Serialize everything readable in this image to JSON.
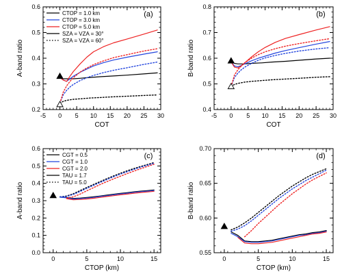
{
  "chart_data": [
    {
      "panel": "(a)",
      "type": "line",
      "xlabel": "COT",
      "ylabel": "A-band ratio",
      "xlim": [
        -5,
        30
      ],
      "ylim": [
        0.2,
        0.6
      ],
      "xticks": [
        -5,
        0,
        5,
        10,
        15,
        20,
        25,
        30
      ],
      "yticks": [
        0.2,
        0.3,
        0.4,
        0.5,
        0.6
      ],
      "legend": [
        "CTOP = 1.0 km",
        "CTOP = 3.0 km",
        "CTOP = 5.0 km",
        "SZA = VZA = 30°",
        "SZA = VZA = 60°"
      ],
      "legend_colors": [
        "#000000",
        "#2244dd",
        "#ee2222",
        "#000000",
        "#000000"
      ],
      "legend_styles": [
        "solid",
        "solid",
        "solid",
        "solid",
        "dotted"
      ],
      "legend_position": "top-left",
      "series": [
        {
          "color": "#000000",
          "style": "solid",
          "x": [
            0,
            1,
            2,
            4,
            6,
            9,
            12,
            16,
            20,
            25,
            29
          ],
          "y": [
            0.325,
            0.32,
            0.32,
            0.32,
            0.322,
            0.325,
            0.328,
            0.331,
            0.334,
            0.339,
            0.343
          ]
        },
        {
          "color": "#2244dd",
          "style": "solid",
          "x": [
            0,
            1,
            2,
            3,
            4,
            6,
            8,
            10,
            13,
            16,
            20,
            25,
            29
          ],
          "y": [
            0.325,
            0.315,
            0.31,
            0.32,
            0.33,
            0.345,
            0.358,
            0.37,
            0.383,
            0.393,
            0.404,
            0.416,
            0.425
          ]
        },
        {
          "color": "#ee2222",
          "style": "solid",
          "x": [
            0,
            1,
            2,
            3,
            4,
            6,
            8,
            10,
            13,
            16,
            20,
            25,
            29
          ],
          "y": [
            0.325,
            0.315,
            0.31,
            0.33,
            0.348,
            0.378,
            0.404,
            0.425,
            0.445,
            0.46,
            0.475,
            0.494,
            0.51
          ]
        },
        {
          "color": "#000000",
          "style": "dotted",
          "x": [
            0,
            1,
            2,
            4,
            6,
            9,
            12,
            16,
            20,
            25,
            29
          ],
          "y": [
            0.225,
            0.232,
            0.236,
            0.24,
            0.242,
            0.245,
            0.247,
            0.25,
            0.252,
            0.255,
            0.257
          ]
        },
        {
          "color": "#2244dd",
          "style": "dotted",
          "x": [
            0,
            1,
            2,
            3,
            4,
            6,
            8,
            10,
            13,
            16,
            20,
            25,
            29
          ],
          "y": [
            0.225,
            0.258,
            0.275,
            0.288,
            0.298,
            0.313,
            0.324,
            0.333,
            0.344,
            0.353,
            0.363,
            0.376,
            0.385
          ]
        },
        {
          "color": "#ee2222",
          "style": "dotted",
          "x": [
            0,
            1,
            2,
            3,
            4,
            6,
            8,
            10,
            13,
            16,
            20,
            25,
            29
          ],
          "y": [
            0.225,
            0.268,
            0.292,
            0.31,
            0.324,
            0.346,
            0.362,
            0.375,
            0.39,
            0.402,
            0.414,
            0.428,
            0.437
          ]
        }
      ],
      "markers": [
        {
          "shape": "filled-triangle",
          "x": 0,
          "y": 0.33
        },
        {
          "shape": "open-triangle",
          "x": 0,
          "y": 0.22
        }
      ]
    },
    {
      "panel": "(b)",
      "type": "line",
      "xlabel": "COT",
      "ylabel": "B-band ratio",
      "xlim": [
        -5,
        30
      ],
      "ylim": [
        0.4,
        0.8
      ],
      "xticks": [
        -5,
        0,
        5,
        10,
        15,
        20,
        25,
        30
      ],
      "yticks": [
        0.4,
        0.5,
        0.6,
        0.7,
        0.8
      ],
      "series": [
        {
          "color": "#000000",
          "style": "solid",
          "x": [
            0,
            1,
            2,
            4,
            6,
            9,
            12,
            16,
            20,
            25,
            29
          ],
          "y": [
            0.585,
            0.58,
            0.578,
            0.578,
            0.58,
            0.582,
            0.585,
            0.588,
            0.592,
            0.597,
            0.6
          ]
        },
        {
          "color": "#2244dd",
          "style": "solid",
          "x": [
            0,
            1,
            2,
            3,
            4,
            6,
            8,
            10,
            13,
            16,
            20,
            25,
            29
          ],
          "y": [
            0.585,
            0.57,
            0.567,
            0.572,
            0.578,
            0.59,
            0.6,
            0.608,
            0.62,
            0.63,
            0.641,
            0.655,
            0.665
          ]
        },
        {
          "color": "#ee2222",
          "style": "solid",
          "x": [
            0,
            1,
            2,
            3,
            4,
            6,
            8,
            10,
            13,
            16,
            20,
            25,
            29
          ],
          "y": [
            0.585,
            0.565,
            0.562,
            0.57,
            0.582,
            0.605,
            0.625,
            0.642,
            0.662,
            0.677,
            0.692,
            0.71,
            0.723
          ]
        },
        {
          "color": "#000000",
          "style": "dotted",
          "x": [
            0,
            1,
            2,
            4,
            6,
            9,
            12,
            16,
            20,
            25,
            29
          ],
          "y": [
            0.49,
            0.498,
            0.502,
            0.507,
            0.51,
            0.513,
            0.516,
            0.519,
            0.522,
            0.526,
            0.528
          ]
        },
        {
          "color": "#2244dd",
          "style": "dotted",
          "x": [
            0,
            1,
            2,
            3,
            4,
            6,
            8,
            10,
            13,
            16,
            20,
            25,
            29
          ],
          "y": [
            0.49,
            0.525,
            0.542,
            0.555,
            0.565,
            0.58,
            0.592,
            0.601,
            0.611,
            0.619,
            0.628,
            0.636,
            0.641
          ]
        },
        {
          "color": "#ee2222",
          "style": "dotted",
          "x": [
            0,
            1,
            2,
            3,
            4,
            6,
            8,
            10,
            13,
            16,
            20,
            25,
            29
          ],
          "y": [
            0.49,
            0.535,
            0.555,
            0.57,
            0.582,
            0.6,
            0.614,
            0.625,
            0.637,
            0.647,
            0.657,
            0.668,
            0.676
          ]
        }
      ],
      "markers": [
        {
          "shape": "filled-triangle",
          "x": 0,
          "y": 0.59
        },
        {
          "shape": "open-triangle",
          "x": 0,
          "y": 0.49
        }
      ]
    },
    {
      "panel": "(c)",
      "type": "line",
      "xlabel": "CTOP (km)",
      "ylabel": "A-band ratio",
      "xlim": [
        -1.5,
        16
      ],
      "ylim": [
        0.0,
        0.6
      ],
      "xticks": [
        0,
        5,
        10,
        15
      ],
      "yticks": [
        0.0,
        0.1,
        0.2,
        0.3,
        0.4,
        0.5,
        0.6
      ],
      "legend": [
        "CGT = 0.5",
        "CGT = 1.0",
        "CGT = 2.0",
        "TAU = 1.7",
        "TAU = 5.0"
      ],
      "legend_colors": [
        "#000000",
        "#2244dd",
        "#ee2222",
        "#000000",
        "#000000"
      ],
      "legend_styles": [
        "solid",
        "solid",
        "solid",
        "solid",
        "dotted"
      ],
      "legend_position": "top-left",
      "series": [
        {
          "color": "#000000",
          "style": "solid",
          "x": [
            1,
            2,
            3,
            4,
            5,
            6,
            7,
            8,
            9,
            10,
            11,
            12,
            13,
            14,
            15
          ],
          "y": [
            0.32,
            0.318,
            0.313,
            0.315,
            0.318,
            0.322,
            0.327,
            0.332,
            0.337,
            0.342,
            0.346,
            0.351,
            0.355,
            0.358,
            0.362
          ]
        },
        {
          "color": "#2244dd",
          "style": "solid",
          "x": [
            1,
            2,
            3,
            4,
            5,
            6,
            7,
            8,
            9,
            10,
            11,
            12,
            13,
            14,
            15
          ],
          "y": [
            0.32,
            0.316,
            0.31,
            0.312,
            0.315,
            0.319,
            0.324,
            0.329,
            0.334,
            0.339,
            0.343,
            0.348,
            0.352,
            0.355,
            0.359
          ]
        },
        {
          "color": "#ee2222",
          "style": "solid",
          "x": [
            2,
            3,
            4,
            5,
            6,
            7,
            8,
            9,
            10,
            11,
            12,
            13,
            14,
            15
          ],
          "y": [
            0.312,
            0.305,
            0.307,
            0.31,
            0.314,
            0.319,
            0.324,
            0.329,
            0.334,
            0.338,
            0.343,
            0.347,
            0.35,
            0.354
          ]
        },
        {
          "color": "#000000",
          "style": "dotted",
          "x": [
            1,
            2,
            3,
            4,
            5,
            6,
            7,
            8,
            9,
            10,
            11,
            12,
            13,
            14,
            15
          ],
          "y": [
            0.322,
            0.327,
            0.34,
            0.358,
            0.376,
            0.393,
            0.41,
            0.427,
            0.443,
            0.458,
            0.472,
            0.485,
            0.497,
            0.508,
            0.52
          ]
        },
        {
          "color": "#2244dd",
          "style": "dotted",
          "x": [
            1,
            2,
            3,
            4,
            5,
            6,
            7,
            8,
            9,
            10,
            11,
            12,
            13,
            14,
            15
          ],
          "y": [
            0.322,
            0.324,
            0.336,
            0.353,
            0.371,
            0.388,
            0.405,
            0.422,
            0.438,
            0.453,
            0.467,
            0.48,
            0.493,
            0.504,
            0.516
          ]
        },
        {
          "color": "#ee2222",
          "style": "dotted",
          "x": [
            2,
            3,
            4,
            5,
            6,
            7,
            8,
            9,
            10,
            11,
            12,
            13,
            14,
            15
          ],
          "y": [
            0.315,
            0.322,
            0.338,
            0.357,
            0.375,
            0.393,
            0.41,
            0.426,
            0.441,
            0.456,
            0.47,
            0.484,
            0.497,
            0.51
          ]
        }
      ],
      "markers": [
        {
          "shape": "filled-triangle",
          "x": 0,
          "y": 0.33
        }
      ]
    },
    {
      "panel": "(d)",
      "type": "line",
      "xlabel": "CTOP (km)",
      "ylabel": "B-band ratio",
      "xlim": [
        -1.5,
        16
      ],
      "ylim": [
        0.55,
        0.7
      ],
      "xticks": [
        0,
        5,
        10,
        15
      ],
      "yticks": [
        0.55,
        0.6,
        0.65,
        0.7
      ],
      "series": [
        {
          "color": "#000000",
          "style": "solid",
          "x": [
            1,
            2,
            3,
            4,
            5,
            6,
            7,
            8,
            9,
            10,
            11,
            12,
            13,
            14,
            15
          ],
          "y": [
            0.58,
            0.575,
            0.567,
            0.566,
            0.566,
            0.567,
            0.568,
            0.57,
            0.572,
            0.574,
            0.576,
            0.577,
            0.579,
            0.58,
            0.582
          ]
        },
        {
          "color": "#2244dd",
          "style": "solid",
          "x": [
            1,
            2,
            3,
            4,
            5,
            6,
            7,
            8,
            9,
            10,
            11,
            12,
            13,
            14,
            15
          ],
          "y": [
            0.578,
            0.573,
            0.566,
            0.565,
            0.565,
            0.566,
            0.567,
            0.569,
            0.571,
            0.573,
            0.575,
            0.576,
            0.578,
            0.579,
            0.581
          ]
        },
        {
          "color": "#ee2222",
          "style": "solid",
          "x": [
            2,
            3,
            4,
            5,
            6,
            7,
            8,
            9,
            10,
            11,
            12,
            13,
            14,
            15
          ],
          "y": [
            0.572,
            0.564,
            0.563,
            0.563,
            0.564,
            0.565,
            0.567,
            0.569,
            0.571,
            0.573,
            0.575,
            0.577,
            0.578,
            0.58
          ]
        },
        {
          "color": "#000000",
          "style": "dotted",
          "x": [
            1,
            2,
            3,
            4,
            5,
            6,
            7,
            8,
            9,
            10,
            11,
            12,
            13,
            14,
            15
          ],
          "y": [
            0.583,
            0.587,
            0.593,
            0.6,
            0.608,
            0.616,
            0.624,
            0.632,
            0.639,
            0.646,
            0.652,
            0.658,
            0.663,
            0.667,
            0.671
          ]
        },
        {
          "color": "#2244dd",
          "style": "dotted",
          "x": [
            1,
            2,
            3,
            4,
            5,
            6,
            7,
            8,
            9,
            10,
            11,
            12,
            13,
            14,
            15
          ],
          "y": [
            0.581,
            0.584,
            0.589,
            0.596,
            0.604,
            0.612,
            0.62,
            0.628,
            0.635,
            0.642,
            0.648,
            0.654,
            0.659,
            0.664,
            0.669
          ]
        },
        {
          "color": "#ee2222",
          "style": "dotted",
          "x": [
            3,
            4,
            5,
            6,
            7,
            8,
            9,
            10,
            11,
            12,
            13,
            14,
            15
          ],
          "y": [
            0.573,
            0.582,
            0.592,
            0.601,
            0.61,
            0.619,
            0.627,
            0.635,
            0.642,
            0.649,
            0.655,
            0.66,
            0.665
          ]
        }
      ],
      "markers": [
        {
          "shape": "filled-triangle",
          "x": 0,
          "y": 0.588
        }
      ]
    }
  ]
}
